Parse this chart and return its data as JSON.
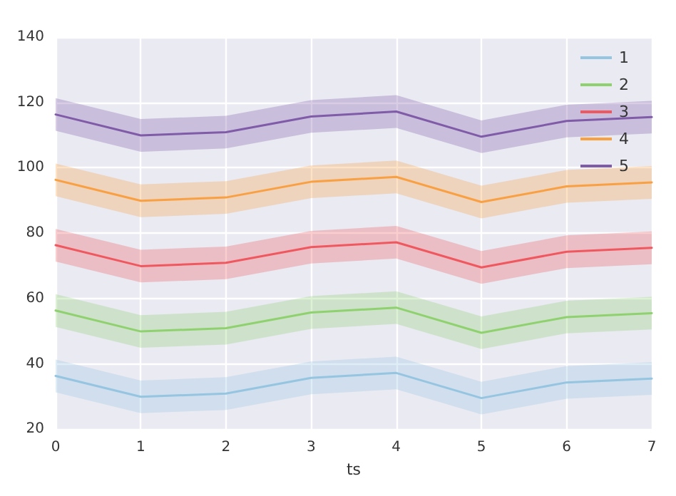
{
  "chart_data": {
    "type": "line",
    "xlabel": "ts",
    "x": [
      0,
      1,
      2,
      3,
      4,
      5,
      6,
      7
    ],
    "xlim": [
      0,
      7
    ],
    "xticks": [
      0,
      1,
      2,
      3,
      4,
      5,
      6,
      7
    ],
    "ylim": [
      20,
      140
    ],
    "yticks": [
      20,
      40,
      60,
      80,
      100,
      120,
      140
    ],
    "grid": true,
    "legend": "top right",
    "marker": "none",
    "line_style": "solid",
    "series": [
      {
        "name": "1",
        "color": "#95c5e0",
        "values": [
          36.3,
          29.9,
          30.9,
          35.7,
          37.2,
          29.5,
          34.3,
          35.5
        ],
        "lower": [
          31.3,
          24.9,
          25.9,
          30.7,
          32.2,
          24.5,
          29.3,
          30.5
        ],
        "upper": [
          41.3,
          34.9,
          35.9,
          40.7,
          42.2,
          34.5,
          39.3,
          40.5
        ]
      },
      {
        "name": "2",
        "color": "#8fd16f",
        "values": [
          56.3,
          49.9,
          50.9,
          55.7,
          57.2,
          49.5,
          54.3,
          55.5
        ],
        "lower": [
          51.3,
          44.9,
          45.9,
          50.7,
          52.2,
          44.5,
          49.3,
          50.5
        ],
        "upper": [
          61.3,
          54.9,
          55.9,
          60.7,
          62.2,
          54.5,
          59.3,
          60.5
        ]
      },
      {
        "name": "3",
        "color": "#f0585f",
        "values": [
          76.3,
          69.9,
          70.9,
          75.7,
          77.2,
          69.5,
          74.3,
          75.5
        ],
        "lower": [
          71.3,
          64.9,
          65.9,
          70.7,
          72.2,
          64.5,
          69.3,
          70.5
        ],
        "upper": [
          81.3,
          74.9,
          75.9,
          80.7,
          82.2,
          74.5,
          79.3,
          80.5
        ]
      },
      {
        "name": "4",
        "color": "#f9a043",
        "values": [
          96.3,
          89.9,
          90.9,
          95.7,
          97.2,
          89.5,
          94.3,
          95.5
        ],
        "lower": [
          91.3,
          84.9,
          85.9,
          90.7,
          92.2,
          84.5,
          89.3,
          90.5
        ],
        "upper": [
          101.3,
          94.9,
          95.9,
          100.7,
          102.2,
          94.5,
          99.3,
          100.5
        ]
      },
      {
        "name": "5",
        "color": "#7f5ba8",
        "values": [
          116.3,
          109.9,
          110.9,
          115.7,
          117.2,
          109.5,
          114.3,
          115.5
        ],
        "lower": [
          111.3,
          104.9,
          105.9,
          110.7,
          112.2,
          104.5,
          109.3,
          110.5
        ],
        "upper": [
          121.3,
          114.9,
          115.9,
          120.7,
          122.2,
          114.5,
          119.3,
          120.5
        ]
      }
    ]
  }
}
